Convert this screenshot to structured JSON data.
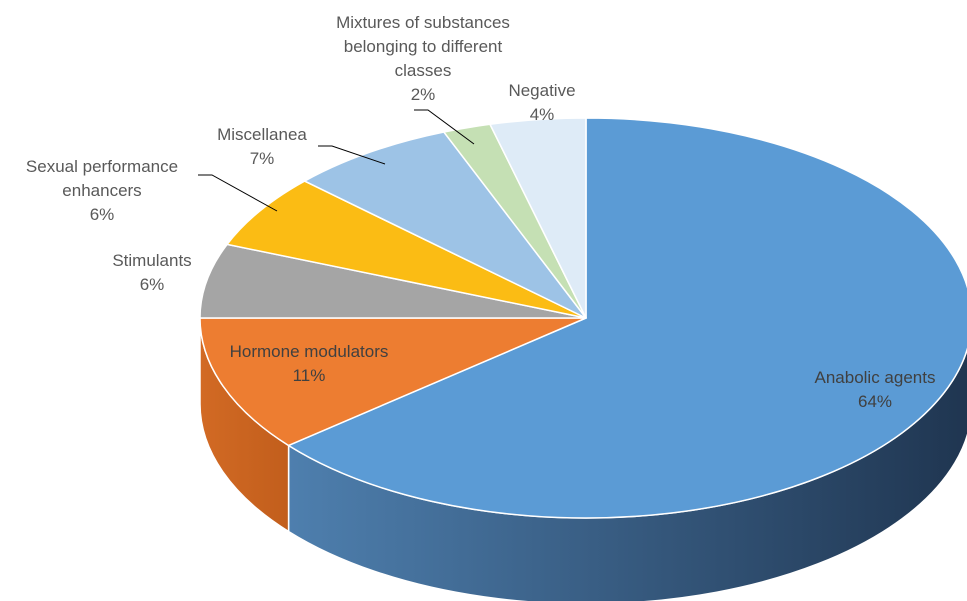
{
  "chart_data": {
    "type": "pie",
    "style": "3d",
    "slices": [
      {
        "name": "Anabolic agents",
        "value": 64,
        "label_lines": [
          "Anabolic agents"
        ],
        "pct_text": "64%",
        "color": "#5B9BD5",
        "side_color": "#3A6A9A"
      },
      {
        "name": "Hormone modulators",
        "value": 11,
        "label_lines": [
          "Hormone modulators"
        ],
        "pct_text": "11%",
        "color": "#ED7D31",
        "side_color": "#C35F1E"
      },
      {
        "name": "Stimulants",
        "value": 6,
        "label_lines": [
          "Stimulants"
        ],
        "pct_text": "6%",
        "color": "#A5A5A5",
        "side_color": "#7F7F7F"
      },
      {
        "name": "Sexual performance enhancers",
        "value": 6,
        "label_lines": [
          "Sexual performance",
          "enhancers"
        ],
        "pct_text": "6%",
        "color": "#FBBC14",
        "side_color": "#C89310"
      },
      {
        "name": "Miscellanea",
        "value": 7,
        "label_lines": [
          "Miscellanea"
        ],
        "pct_text": "7%",
        "color": "#9DC3E6",
        "side_color": "#7A9DBC"
      },
      {
        "name": "Mixtures of substances belonging to different classes",
        "value": 2,
        "label_lines": [
          "Mixtures of substances",
          "belonging to different",
          "classes"
        ],
        "pct_text": "2%",
        "color": "#C5E0B4",
        "side_color": "#9DB38F"
      },
      {
        "name": "Negative",
        "value": 4,
        "label_lines": [
          "Negative"
        ],
        "pct_text": "4%",
        "color": "#DEEBF7",
        "side_color": "#B5C3D0"
      }
    ]
  }
}
